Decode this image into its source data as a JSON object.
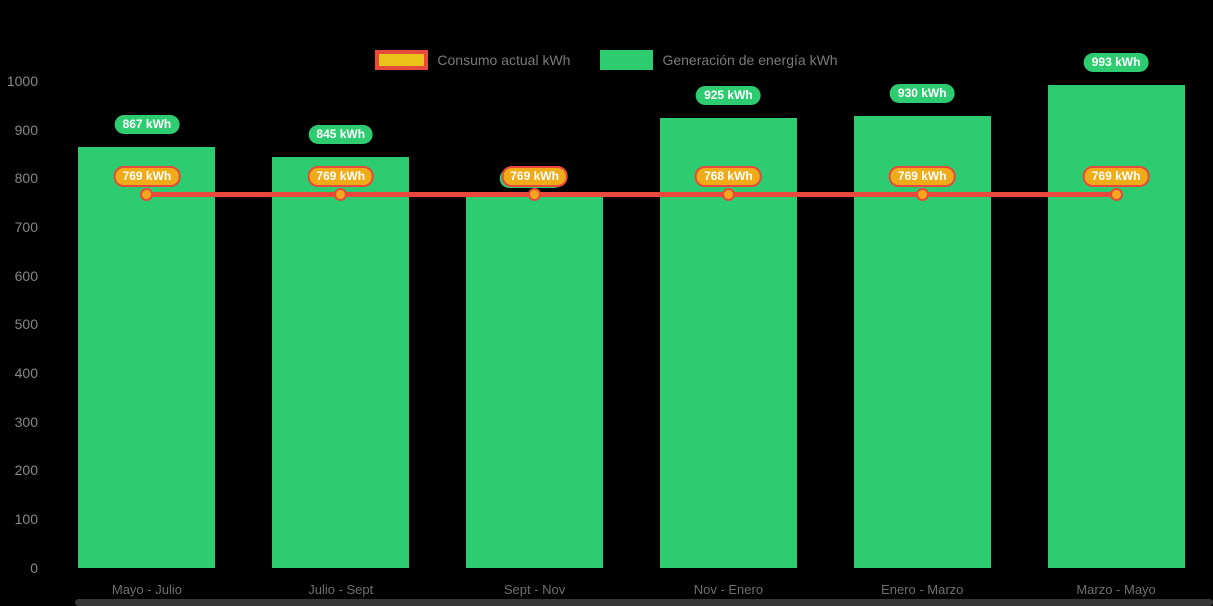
{
  "chart_data": {
    "type": "bar",
    "title": "",
    "categories": [
      "Mayo - Julio",
      "Julio - Sept",
      "Sept - Nov",
      "Nov - Enero",
      "Enero - Marzo",
      "Marzo - Mayo"
    ],
    "series": [
      {
        "name": "Consumo actual kWh",
        "type": "line",
        "values": [
          769,
          769,
          769,
          768,
          769,
          769
        ]
      },
      {
        "name": "Generación de energía kWh",
        "type": "bar",
        "values": [
          867,
          845,
          769,
          925,
          930,
          993
        ]
      }
    ],
    "value_suffix": " kWh",
    "ylim": [
      0,
      1000
    ],
    "yticks": [
      0,
      100,
      200,
      300,
      400,
      500,
      600,
      700,
      800,
      900,
      1000
    ],
    "grid": false,
    "legend_position": "top-center",
    "colors": {
      "background": "#000000",
      "bar": "#2ecc71",
      "line": "#e8493c",
      "point_fill": "#f5a71b",
      "consumo_label_bg": "#f0ac18",
      "consumo_label_border": "#e8493c",
      "generacion_label_bg": "#2ecc71",
      "label_text": "#ffffff",
      "axis_tick_text": "#878787",
      "category_text": "#6f6f6f",
      "legend_text": "#7a7a7a",
      "legend_consumo_fill": "#e9c319",
      "legend_consumo_border": "#e8493c",
      "scrollbar": "#363636"
    }
  }
}
